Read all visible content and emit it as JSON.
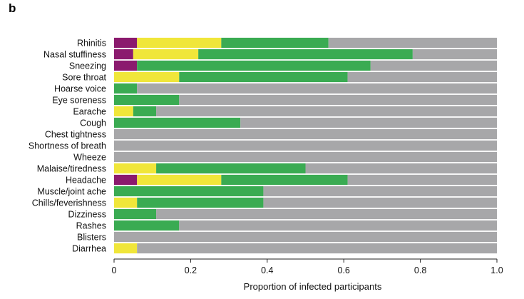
{
  "panel_label": "b",
  "chart_data": {
    "type": "bar",
    "orientation": "horizontal",
    "stacked": true,
    "xlabel": "Proportion of infected participants",
    "ylabel": "",
    "xlim": [
      0,
      1.0
    ],
    "xticks": [
      "0",
      "0.2",
      "0.4",
      "0.6",
      "0.8",
      "1.0"
    ],
    "xtick_values": [
      0,
      0.2,
      0.4,
      0.6,
      0.8,
      1.0
    ],
    "categories": [
      "Rhinitis",
      "Nasal stuffiness",
      "Sneezing",
      "Sore throat",
      "Hoarse voice",
      "Eye soreness",
      "Earache",
      "Cough",
      "Chest tightness",
      "Shortness of breath",
      "Wheeze",
      "Malaise/tiredness",
      "Headache",
      "Muscle/joint ache",
      "Chills/feverishness",
      "Dizziness",
      "Rashes",
      "Blisters",
      "Diarrhea"
    ],
    "series": [
      {
        "color": "#8b1a6e",
        "values": [
          0.06,
          0.05,
          0.06,
          0,
          0,
          0,
          0,
          0,
          0,
          0,
          0,
          0,
          0.06,
          0,
          0,
          0,
          0,
          0,
          0
        ]
      },
      {
        "color": "#f0e63a",
        "values": [
          0.22,
          0.17,
          0,
          0.17,
          0,
          0,
          0.05,
          0,
          0,
          0,
          0,
          0.11,
          0.22,
          0,
          0.06,
          0,
          0,
          0,
          0.06
        ]
      },
      {
        "color": "#3aab52",
        "values": [
          0.28,
          0.56,
          0.61,
          0.44,
          0.06,
          0.17,
          0.06,
          0.33,
          0,
          0,
          0,
          0.39,
          0.33,
          0.39,
          0.33,
          0.11,
          0.17,
          0,
          0
        ]
      },
      {
        "color": "#a7a7a9",
        "values": [
          0.44,
          0.22,
          0.33,
          0.39,
          0.94,
          0.83,
          0.89,
          0.67,
          1.0,
          1.0,
          1.0,
          0.5,
          0.39,
          0.61,
          0.61,
          0.89,
          0.83,
          1.0,
          0.94
        ]
      }
    ],
    "grid": false,
    "legend": "none"
  }
}
